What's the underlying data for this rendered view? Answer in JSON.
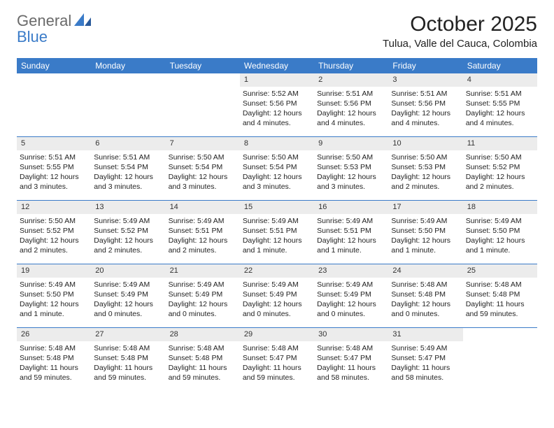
{
  "logo": {
    "line1": "General",
    "line2": "Blue"
  },
  "title": "October 2025",
  "location": "Tulua, Valle del Cauca, Colombia",
  "colors": {
    "header_bg": "#3a7bc8",
    "header_text": "#ffffff",
    "daynum_bg": "#ececec",
    "rule": "#3a7bc8",
    "logo_gray": "#6a6a6a",
    "logo_blue": "#3a7bc8"
  },
  "daysOfWeek": [
    "Sunday",
    "Monday",
    "Tuesday",
    "Wednesday",
    "Thursday",
    "Friday",
    "Saturday"
  ],
  "weeks": [
    [
      {
        "empty": true
      },
      {
        "empty": true
      },
      {
        "empty": true
      },
      {
        "num": "1",
        "sunrise": "Sunrise: 5:52 AM",
        "sunset": "Sunset: 5:56 PM",
        "daylight": "Daylight: 12 hours and 4 minutes."
      },
      {
        "num": "2",
        "sunrise": "Sunrise: 5:51 AM",
        "sunset": "Sunset: 5:56 PM",
        "daylight": "Daylight: 12 hours and 4 minutes."
      },
      {
        "num": "3",
        "sunrise": "Sunrise: 5:51 AM",
        "sunset": "Sunset: 5:56 PM",
        "daylight": "Daylight: 12 hours and 4 minutes."
      },
      {
        "num": "4",
        "sunrise": "Sunrise: 5:51 AM",
        "sunset": "Sunset: 5:55 PM",
        "daylight": "Daylight: 12 hours and 4 minutes."
      }
    ],
    [
      {
        "num": "5",
        "sunrise": "Sunrise: 5:51 AM",
        "sunset": "Sunset: 5:55 PM",
        "daylight": "Daylight: 12 hours and 3 minutes."
      },
      {
        "num": "6",
        "sunrise": "Sunrise: 5:51 AM",
        "sunset": "Sunset: 5:54 PM",
        "daylight": "Daylight: 12 hours and 3 minutes."
      },
      {
        "num": "7",
        "sunrise": "Sunrise: 5:50 AM",
        "sunset": "Sunset: 5:54 PM",
        "daylight": "Daylight: 12 hours and 3 minutes."
      },
      {
        "num": "8",
        "sunrise": "Sunrise: 5:50 AM",
        "sunset": "Sunset: 5:54 PM",
        "daylight": "Daylight: 12 hours and 3 minutes."
      },
      {
        "num": "9",
        "sunrise": "Sunrise: 5:50 AM",
        "sunset": "Sunset: 5:53 PM",
        "daylight": "Daylight: 12 hours and 3 minutes."
      },
      {
        "num": "10",
        "sunrise": "Sunrise: 5:50 AM",
        "sunset": "Sunset: 5:53 PM",
        "daylight": "Daylight: 12 hours and 2 minutes."
      },
      {
        "num": "11",
        "sunrise": "Sunrise: 5:50 AM",
        "sunset": "Sunset: 5:52 PM",
        "daylight": "Daylight: 12 hours and 2 minutes."
      }
    ],
    [
      {
        "num": "12",
        "sunrise": "Sunrise: 5:50 AM",
        "sunset": "Sunset: 5:52 PM",
        "daylight": "Daylight: 12 hours and 2 minutes."
      },
      {
        "num": "13",
        "sunrise": "Sunrise: 5:49 AM",
        "sunset": "Sunset: 5:52 PM",
        "daylight": "Daylight: 12 hours and 2 minutes."
      },
      {
        "num": "14",
        "sunrise": "Sunrise: 5:49 AM",
        "sunset": "Sunset: 5:51 PM",
        "daylight": "Daylight: 12 hours and 2 minutes."
      },
      {
        "num": "15",
        "sunrise": "Sunrise: 5:49 AM",
        "sunset": "Sunset: 5:51 PM",
        "daylight": "Daylight: 12 hours and 1 minute."
      },
      {
        "num": "16",
        "sunrise": "Sunrise: 5:49 AM",
        "sunset": "Sunset: 5:51 PM",
        "daylight": "Daylight: 12 hours and 1 minute."
      },
      {
        "num": "17",
        "sunrise": "Sunrise: 5:49 AM",
        "sunset": "Sunset: 5:50 PM",
        "daylight": "Daylight: 12 hours and 1 minute."
      },
      {
        "num": "18",
        "sunrise": "Sunrise: 5:49 AM",
        "sunset": "Sunset: 5:50 PM",
        "daylight": "Daylight: 12 hours and 1 minute."
      }
    ],
    [
      {
        "num": "19",
        "sunrise": "Sunrise: 5:49 AM",
        "sunset": "Sunset: 5:50 PM",
        "daylight": "Daylight: 12 hours and 1 minute."
      },
      {
        "num": "20",
        "sunrise": "Sunrise: 5:49 AM",
        "sunset": "Sunset: 5:49 PM",
        "daylight": "Daylight: 12 hours and 0 minutes."
      },
      {
        "num": "21",
        "sunrise": "Sunrise: 5:49 AM",
        "sunset": "Sunset: 5:49 PM",
        "daylight": "Daylight: 12 hours and 0 minutes."
      },
      {
        "num": "22",
        "sunrise": "Sunrise: 5:49 AM",
        "sunset": "Sunset: 5:49 PM",
        "daylight": "Daylight: 12 hours and 0 minutes."
      },
      {
        "num": "23",
        "sunrise": "Sunrise: 5:49 AM",
        "sunset": "Sunset: 5:49 PM",
        "daylight": "Daylight: 12 hours and 0 minutes."
      },
      {
        "num": "24",
        "sunrise": "Sunrise: 5:48 AM",
        "sunset": "Sunset: 5:48 PM",
        "daylight": "Daylight: 12 hours and 0 minutes."
      },
      {
        "num": "25",
        "sunrise": "Sunrise: 5:48 AM",
        "sunset": "Sunset: 5:48 PM",
        "daylight": "Daylight: 11 hours and 59 minutes."
      }
    ],
    [
      {
        "num": "26",
        "sunrise": "Sunrise: 5:48 AM",
        "sunset": "Sunset: 5:48 PM",
        "daylight": "Daylight: 11 hours and 59 minutes."
      },
      {
        "num": "27",
        "sunrise": "Sunrise: 5:48 AM",
        "sunset": "Sunset: 5:48 PM",
        "daylight": "Daylight: 11 hours and 59 minutes."
      },
      {
        "num": "28",
        "sunrise": "Sunrise: 5:48 AM",
        "sunset": "Sunset: 5:48 PM",
        "daylight": "Daylight: 11 hours and 59 minutes."
      },
      {
        "num": "29",
        "sunrise": "Sunrise: 5:48 AM",
        "sunset": "Sunset: 5:47 PM",
        "daylight": "Daylight: 11 hours and 59 minutes."
      },
      {
        "num": "30",
        "sunrise": "Sunrise: 5:48 AM",
        "sunset": "Sunset: 5:47 PM",
        "daylight": "Daylight: 11 hours and 58 minutes."
      },
      {
        "num": "31",
        "sunrise": "Sunrise: 5:49 AM",
        "sunset": "Sunset: 5:47 PM",
        "daylight": "Daylight: 11 hours and 58 minutes."
      },
      {
        "empty": true
      }
    ]
  ]
}
